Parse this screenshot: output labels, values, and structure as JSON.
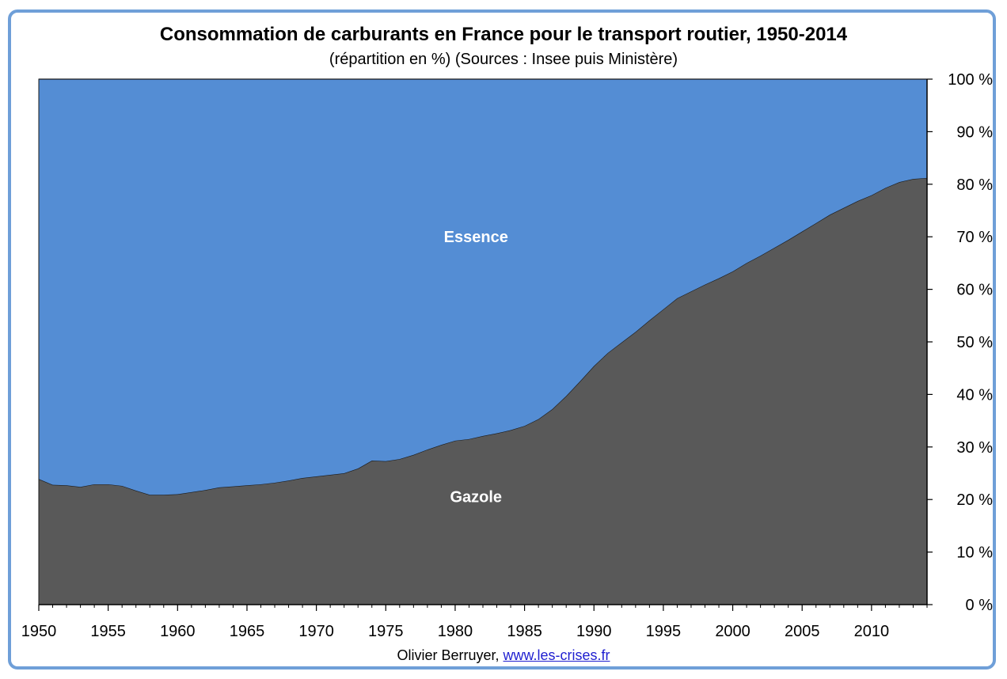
{
  "chart_data": {
    "type": "area",
    "stacked": true,
    "title": "Consommation de carburants en France pour le transport routier, 1950-2014",
    "subtitle": "(répartition en %) (Sources : Insee puis Ministère)",
    "xlim": [
      1950,
      2014
    ],
    "x_ticks": [
      1950,
      1955,
      1960,
      1965,
      1970,
      1975,
      1980,
      1985,
      1990,
      1995,
      2000,
      2005,
      2010
    ],
    "ylim": [
      0,
      100
    ],
    "y_ticks": [
      0,
      10,
      20,
      30,
      40,
      50,
      60,
      70,
      80,
      90,
      100
    ],
    "y_tick_labels": [
      "0 %",
      "10 %",
      "20 %",
      "30 %",
      "40 %",
      "50 %",
      "60 %",
      "70 %",
      "80 %",
      "90 %",
      "100 %"
    ],
    "y_axis_side": "right",
    "grid": false,
    "legend": "none",
    "x": [
      1950,
      1951,
      1952,
      1953,
      1954,
      1955,
      1956,
      1957,
      1958,
      1959,
      1960,
      1961,
      1962,
      1963,
      1964,
      1965,
      1966,
      1967,
      1968,
      1969,
      1970,
      1971,
      1972,
      1973,
      1974,
      1975,
      1976,
      1977,
      1978,
      1979,
      1980,
      1981,
      1982,
      1983,
      1984,
      1985,
      1986,
      1987,
      1988,
      1989,
      1990,
      1991,
      1992,
      1993,
      1994,
      1995,
      1996,
      1997,
      1998,
      1999,
      2000,
      2001,
      2002,
      2003,
      2004,
      2005,
      2006,
      2007,
      2008,
      2009,
      2010,
      2011,
      2012,
      2013,
      2014
    ],
    "series": [
      {
        "name": "Gazole",
        "color": "#595959",
        "label_text_color": "#ffffff",
        "values": [
          23.9,
          22.8,
          22.7,
          22.4,
          22.9,
          22.9,
          22.6,
          21.7,
          20.9,
          20.9,
          21.0,
          21.4,
          21.8,
          22.3,
          22.5,
          22.7,
          22.9,
          23.2,
          23.6,
          24.1,
          24.4,
          24.7,
          25.0,
          25.9,
          27.4,
          27.3,
          27.7,
          28.5,
          29.5,
          30.4,
          31.2,
          31.5,
          32.1,
          32.6,
          33.2,
          34.0,
          35.3,
          37.2,
          39.7,
          42.5,
          45.4,
          47.9,
          49.9,
          51.9,
          54.1,
          56.2,
          58.3,
          59.6,
          60.9,
          62.1,
          63.4,
          65.0,
          66.4,
          67.9,
          69.4,
          71.0,
          72.6,
          74.2,
          75.5,
          76.8,
          77.9,
          79.3,
          80.4,
          81.0,
          81.2
        ]
      },
      {
        "name": "Essence",
        "color": "#548dd4",
        "label_text_color": "#ffffff",
        "values": [
          76.1,
          77.2,
          77.3,
          77.6,
          77.1,
          77.1,
          77.4,
          78.3,
          79.1,
          79.1,
          79.0,
          78.6,
          78.2,
          77.7,
          77.5,
          77.3,
          77.1,
          76.8,
          76.4,
          75.9,
          75.6,
          75.3,
          75.0,
          74.1,
          72.6,
          72.7,
          72.3,
          71.5,
          70.5,
          69.6,
          68.8,
          68.5,
          67.9,
          67.4,
          66.8,
          66.0,
          64.7,
          62.8,
          60.3,
          57.5,
          54.6,
          52.1,
          50.1,
          48.1,
          45.9,
          43.8,
          41.7,
          40.4,
          39.1,
          37.9,
          36.6,
          35.0,
          33.6,
          32.1,
          30.6,
          29.0,
          27.4,
          25.8,
          24.5,
          23.2,
          22.1,
          20.7,
          19.6,
          19.0,
          18.8
        ]
      }
    ],
    "annotations": [
      {
        "text": "Essence",
        "x": 1981.5,
        "y": 69
      },
      {
        "text": "Gazole",
        "x": 1981.5,
        "y": 19.5
      }
    ]
  },
  "footer": {
    "author": "Olivier Berruyer,",
    "link_text": "www.les-crises.fr"
  }
}
